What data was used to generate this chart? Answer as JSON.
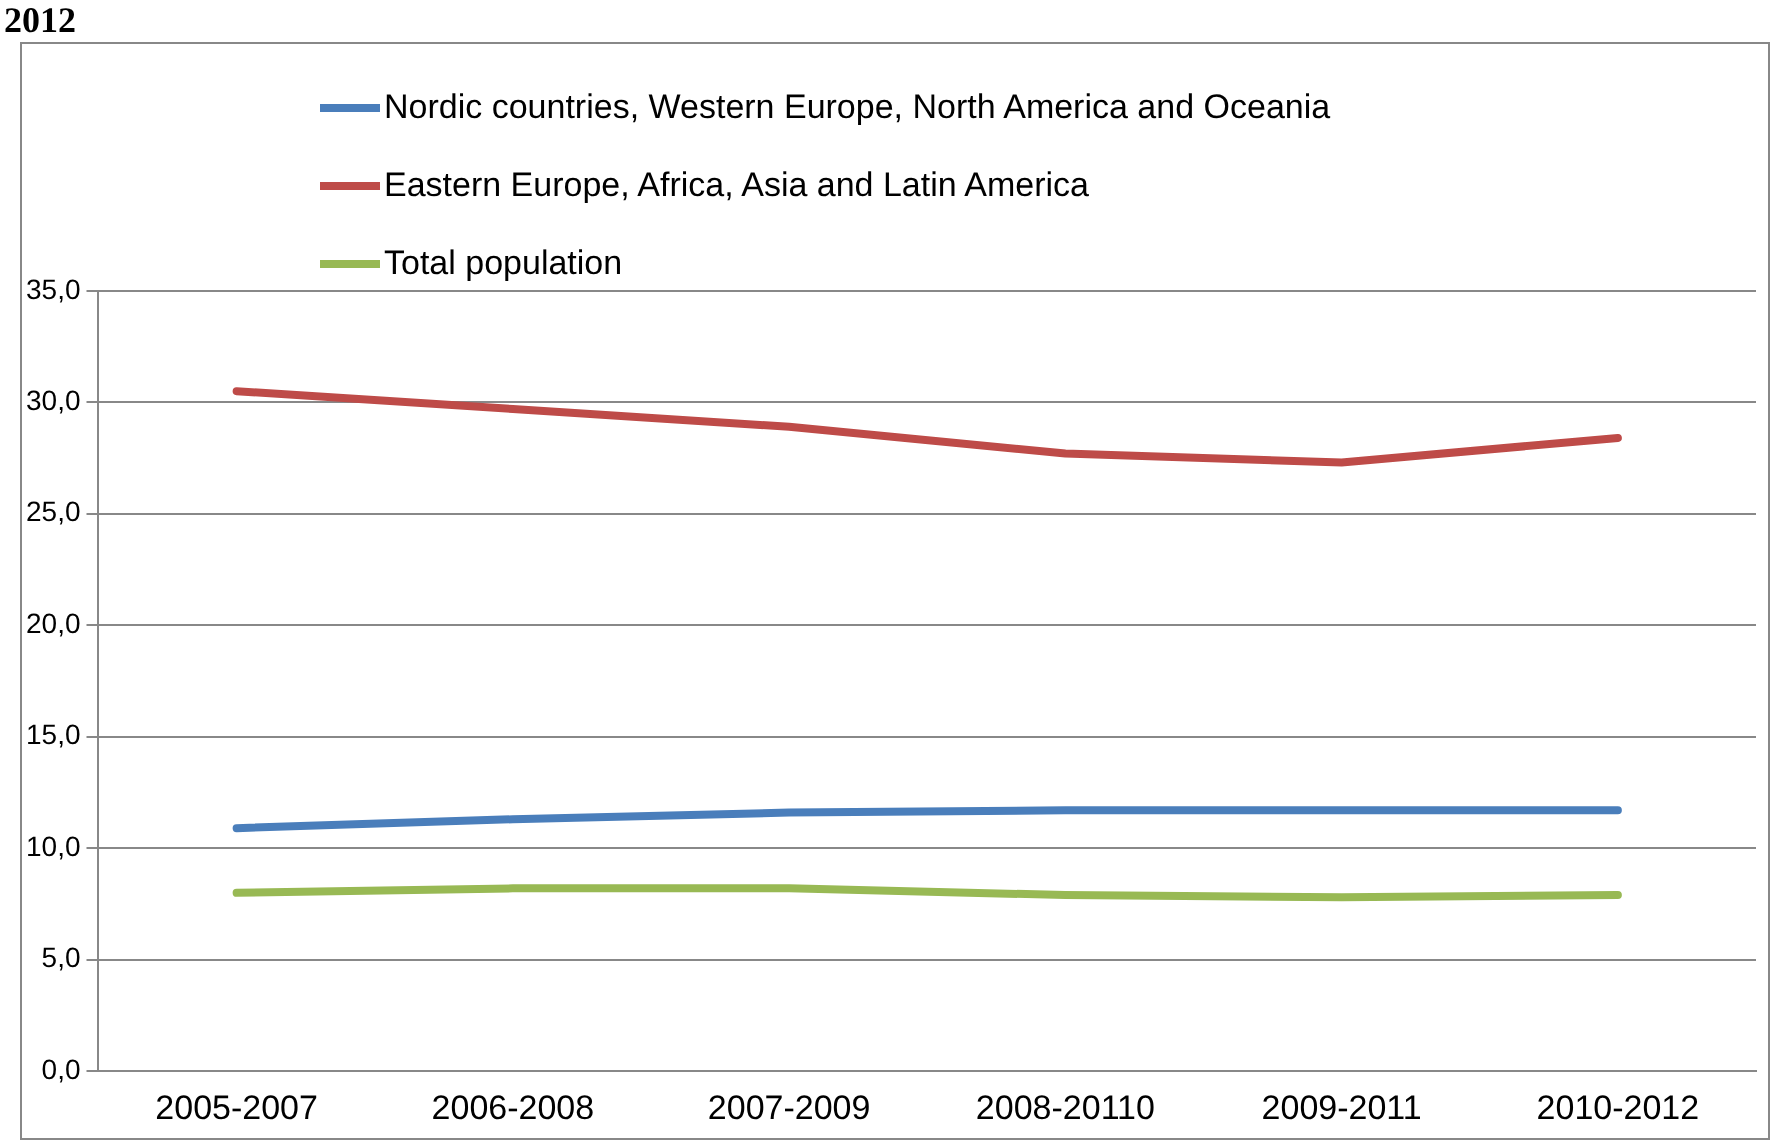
{
  "chart_data": {
    "type": "line",
    "title": "2012",
    "categories": [
      "2005-2007",
      "2006-2008",
      "2007-2009",
      "2008-20110",
      "2009-2011",
      "2010-2012"
    ],
    "series": [
      {
        "name": "Nordic countries, Western Europe, North America and Oceania",
        "color": "#4a7ebb",
        "values": [
          10.9,
          11.3,
          11.6,
          11.7,
          11.7,
          11.7
        ]
      },
      {
        "name": "Eastern Europe, Africa, Asia and Latin America",
        "color": "#be4b48",
        "values": [
          30.5,
          29.7,
          28.9,
          27.7,
          27.3,
          28.4
        ]
      },
      {
        "name": "Total population",
        "color": "#98b954",
        "values": [
          8.0,
          8.2,
          8.2,
          7.9,
          7.8,
          7.9
        ]
      }
    ],
    "ylim": [
      0,
      35
    ],
    "yticks": [
      {
        "value": 0,
        "label": "0,0"
      },
      {
        "value": 5,
        "label": "5,0"
      },
      {
        "value": 10,
        "label": "10,0"
      },
      {
        "value": 15,
        "label": "15,0"
      },
      {
        "value": 20,
        "label": "20,0"
      },
      {
        "value": 25,
        "label": "25,0"
      },
      {
        "value": 30,
        "label": "30,0"
      },
      {
        "value": 35,
        "label": "35,0"
      }
    ],
    "grid": "y",
    "legend": "top",
    "marker": "none",
    "line_style": "solid"
  }
}
